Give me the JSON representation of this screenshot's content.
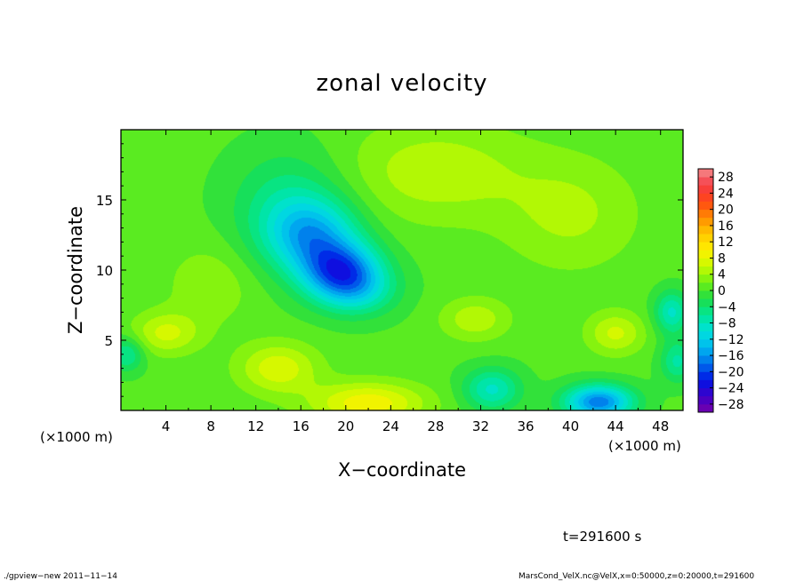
{
  "chart_data": {
    "type": "heatmap",
    "title": "zonal velocity",
    "xlabel": "X−coordinate",
    "ylabel": "Z−coordinate",
    "x_unit_left": "(×1000 m)",
    "x_unit_right": "(×1000 m)",
    "xlim": [
      0,
      50
    ],
    "ylim": [
      0,
      20
    ],
    "x_ticks": [
      {
        "value": 4,
        "label": "4"
      },
      {
        "value": 8,
        "label": "8"
      },
      {
        "value": 12,
        "label": "12"
      },
      {
        "value": 16,
        "label": "16"
      },
      {
        "value": 20,
        "label": "20"
      },
      {
        "value": 24,
        "label": "24"
      },
      {
        "value": 28,
        "label": "28"
      },
      {
        "value": 32,
        "label": "32"
      },
      {
        "value": 36,
        "label": "36"
      },
      {
        "value": 40,
        "label": "40"
      },
      {
        "value": 44,
        "label": "44"
      },
      {
        "value": 48,
        "label": "48"
      }
    ],
    "y_ticks": [
      {
        "value": 5,
        "label": "5"
      },
      {
        "value": 10,
        "label": "10"
      },
      {
        "value": 15,
        "label": "15"
      }
    ],
    "colorbar": {
      "labels": [
        "28",
        "24",
        "20",
        "16",
        "12",
        "8",
        "4",
        "0",
        "−4",
        "−8",
        "−12",
        "−16",
        "−20",
        "−24",
        "−28"
      ],
      "min": -30,
      "max": 30,
      "step": 2
    },
    "background_value": 0.5,
    "features": [
      {
        "x": 19.5,
        "z": 10.0,
        "value": -17,
        "rx": 3.5,
        "rz": 2.0
      },
      {
        "x": 17.0,
        "z": 12.5,
        "value": -12,
        "rx": 4.0,
        "rz": 2.5
      },
      {
        "x": 21.0,
        "z": 8.5,
        "value": -8,
        "rx": 3.5,
        "rz": 1.8
      },
      {
        "x": 15.0,
        "z": 14.5,
        "value": -6,
        "rx": 5.0,
        "rz": 4.0
      },
      {
        "x": 42.5,
        "z": 0.6,
        "value": -18,
        "rx": 3.0,
        "rz": 1.2
      },
      {
        "x": 33.0,
        "z": 1.5,
        "value": -9,
        "rx": 2.5,
        "rz": 1.5
      },
      {
        "x": 49.0,
        "z": 7.0,
        "value": -9,
        "rx": 1.5,
        "rz": 1.5
      },
      {
        "x": 49.5,
        "z": 3.5,
        "value": -7,
        "rx": 1.5,
        "rz": 1.5
      },
      {
        "x": 0.5,
        "z": 4.0,
        "value": -7,
        "rx": 1.5,
        "rz": 1.2
      },
      {
        "x": 22.0,
        "z": 0.5,
        "value": 9,
        "rx": 5.0,
        "rz": 1.5
      },
      {
        "x": 14.0,
        "z": 3.0,
        "value": 7,
        "rx": 3.5,
        "rz": 1.8
      },
      {
        "x": 4.0,
        "z": 5.5,
        "value": 6,
        "rx": 3.0,
        "rz": 1.5
      },
      {
        "x": 31.5,
        "z": 6.5,
        "value": 5,
        "rx": 3.0,
        "rz": 1.5
      },
      {
        "x": 44.0,
        "z": 5.5,
        "value": 6,
        "rx": 2.5,
        "rz": 1.5
      },
      {
        "x": 28.0,
        "z": 17.0,
        "value": 5,
        "rx": 8.0,
        "rz": 3.5
      },
      {
        "x": 40.0,
        "z": 14.0,
        "value": 4,
        "rx": 6.0,
        "rz": 4.0
      },
      {
        "x": 8.0,
        "z": 9.0,
        "value": 3,
        "rx": 4.0,
        "rz": 3.0
      }
    ]
  },
  "time_label": "t=291600 s",
  "footer_left": "./gpview−new   2011−11−14",
  "footer_right": "MarsCond_VelX.nc@VelX,x=0:50000,z=0:20000,t=291600"
}
